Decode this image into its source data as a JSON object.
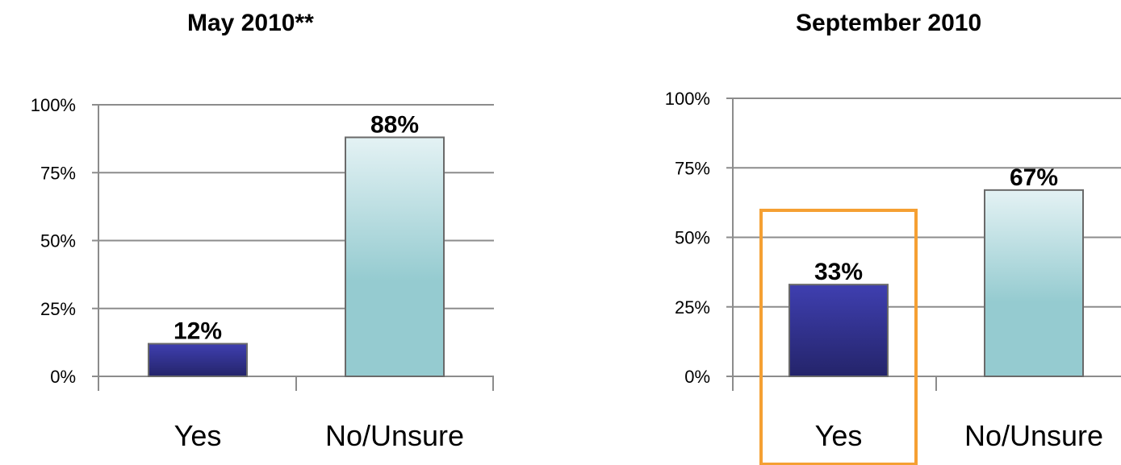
{
  "colors": {
    "yes_top": "#3f3fb0",
    "yes_bottom": "#24246a",
    "no_top": "#e4f2f4",
    "no_bottom": "#95cbd0",
    "highlight": "#f5a033",
    "grid": "#8c8c8c"
  },
  "chart_data": [
    {
      "type": "bar",
      "title": "May 2010**",
      "categories": [
        "Yes",
        "No/Unsure"
      ],
      "values": [
        12,
        88
      ],
      "data_labels": [
        "12%",
        "88%"
      ],
      "ylim": [
        0,
        100
      ],
      "yticks": [
        "0%",
        "25%",
        "50%",
        "75%",
        "100%"
      ],
      "xlabel": "",
      "ylabel": "",
      "grid": true
    },
    {
      "type": "bar",
      "title": "September 2010",
      "categories": [
        "Yes",
        "No/Unsure"
      ],
      "values": [
        33,
        67
      ],
      "data_labels": [
        "33%",
        "67%"
      ],
      "ylim": [
        0,
        100
      ],
      "yticks": [
        "0%",
        "25%",
        "50%",
        "75%",
        "100%"
      ],
      "xlabel": "",
      "ylabel": "",
      "grid": true,
      "highlighted_category": "Yes"
    }
  ]
}
